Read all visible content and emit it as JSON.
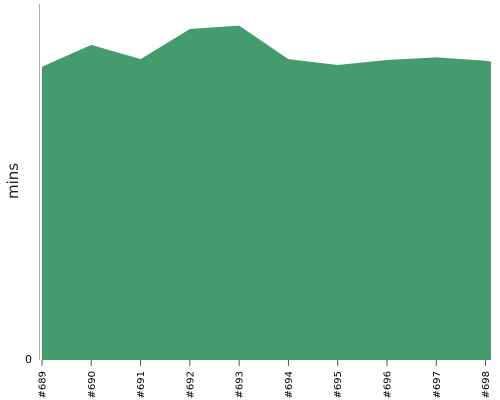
{
  "chart_data": {
    "type": "area",
    "categories": [
      "#689",
      "#690",
      "#691",
      "#692",
      "#693",
      "#694",
      "#695",
      "#696",
      "#697",
      "#698"
    ],
    "series": [
      {
        "values": [
          35.0,
          37.6,
          35.9,
          39.5,
          39.9,
          35.9,
          35.2,
          35.8,
          36.1,
          35.7
        ]
      }
    ],
    "extra_x": [
      9.45
    ],
    "extra_y": [
      35.6
    ],
    "xlabel": "",
    "ylabel": "mins",
    "yticks": [
      "0"
    ],
    "ylim": [
      0,
      42
    ],
    "grid": false,
    "legend": "none",
    "colors": {
      "area": "#449b6c",
      "axis": "#aaaaaa"
    }
  }
}
